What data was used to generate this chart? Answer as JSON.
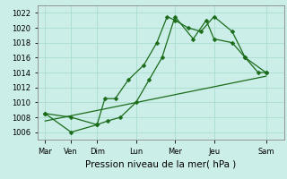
{
  "xlabel": "Pression niveau de la mer( hPa )",
  "background_color": "#cceee8",
  "grid_color": "#aaddcc",
  "line_color": "#1a6b1a",
  "ylim": [
    1005,
    1023
  ],
  "day_labels": [
    "Mar",
    "Ven",
    "Dim",
    "Lun",
    "Mer",
    "Jeu",
    "Sam"
  ],
  "day_positions": [
    0,
    1,
    2,
    3.5,
    5,
    6.5,
    8.5
  ],
  "xlim": [
    -0.3,
    9.2
  ],
  "line1_x": [
    0.0,
    1.0,
    2.0,
    2.3,
    2.7,
    3.2,
    3.8,
    4.3,
    4.7,
    5.0,
    5.5,
    6.0,
    6.5,
    7.2,
    7.7,
    8.5
  ],
  "line1_y": [
    1008.5,
    1008,
    1007,
    1010.5,
    1010.5,
    1013,
    1015,
    1018,
    1021.5,
    1021,
    1020,
    1019.5,
    1021.5,
    1019.5,
    1016,
    1014
  ],
  "line2_x": [
    0.0,
    1.0,
    2.0,
    2.4,
    2.9,
    3.5,
    4.0,
    4.5,
    5.0,
    5.7,
    6.2,
    6.5,
    7.2,
    7.7,
    8.2,
    8.5
  ],
  "line2_y": [
    1008.5,
    1006,
    1007,
    1007.5,
    1008,
    1010,
    1013,
    1016,
    1021.5,
    1018.5,
    1021,
    1018.5,
    1018,
    1016,
    1014,
    1014
  ],
  "line3_x": [
    0.0,
    8.5
  ],
  "line3_y": [
    1007.5,
    1013.5
  ],
  "marker": "D",
  "markersize": 2.5,
  "linewidth": 0.9,
  "tick_fontsize": 6,
  "xlabel_fontsize": 7.5
}
